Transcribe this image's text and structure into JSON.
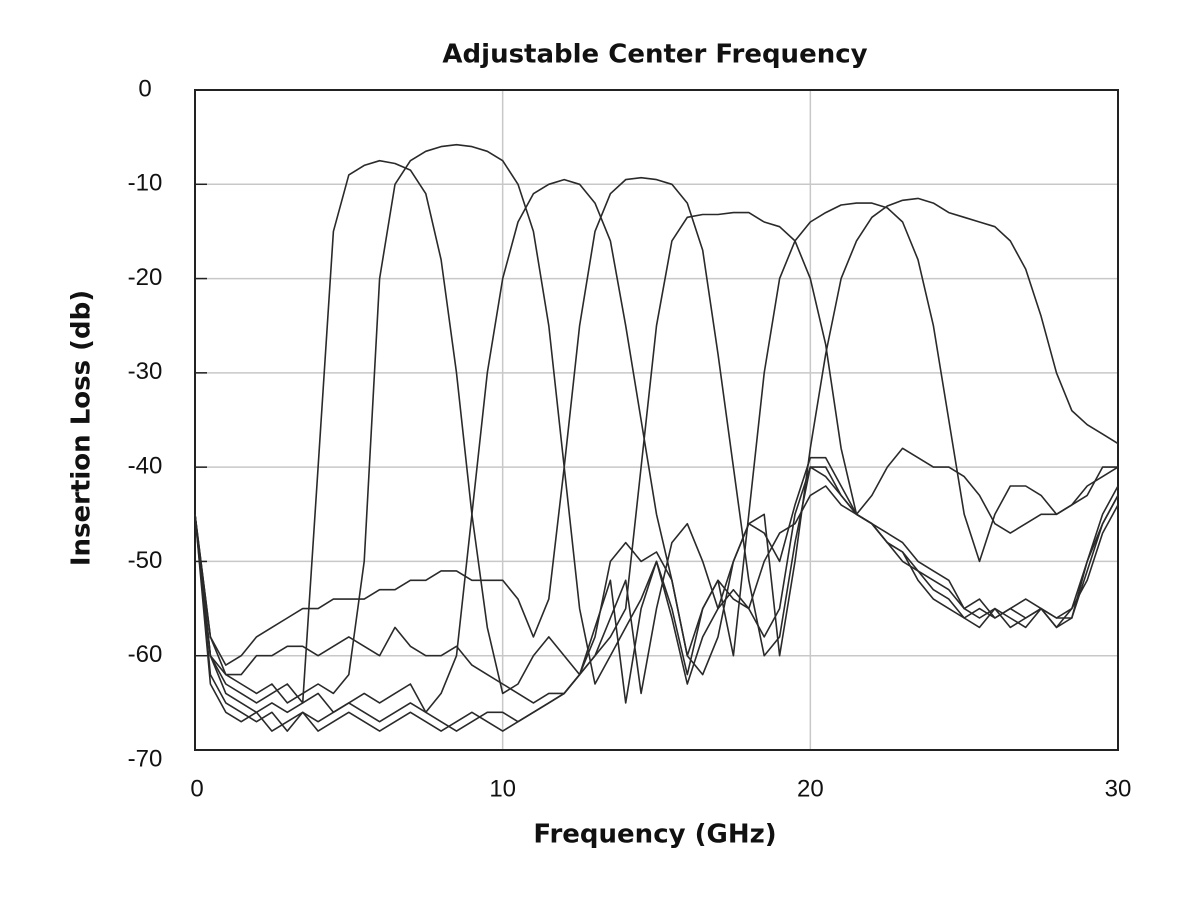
{
  "chart_data": {
    "type": "line",
    "title": "Adjustable Center Frequency",
    "xlabel": "Frequency (GHz)",
    "ylabel": "Insertion Loss (db)",
    "xlim": [
      0,
      30
    ],
    "ylim": [
      -70,
      0
    ],
    "xticks": [
      0,
      10,
      20,
      30
    ],
    "yticks": [
      0,
      -10,
      -20,
      -30,
      -40,
      -50,
      -60,
      -70
    ],
    "grid": true,
    "x": [
      0,
      0.5,
      1,
      1.5,
      2,
      2.5,
      3,
      3.5,
      4,
      4.5,
      5,
      5.5,
      6,
      6.5,
      7,
      7.5,
      8,
      8.5,
      9,
      9.5,
      10,
      10.5,
      11,
      11.5,
      12,
      12.5,
      13,
      13.5,
      14,
      14.5,
      15,
      15.5,
      16,
      16.5,
      17,
      17.5,
      18,
      18.5,
      19,
      19.5,
      20,
      20.5,
      21,
      21.5,
      22,
      22.5,
      23,
      23.5,
      24,
      24.5,
      25,
      25.5,
      26,
      26.5,
      27,
      27.5,
      28,
      28.5,
      29,
      29.5,
      30
    ],
    "series": [
      {
        "color": "#2a2a2a",
        "values": [
          -45,
          -60,
          -64,
          -65,
          -66,
          -65,
          -66,
          -65,
          -40,
          -15,
          -9,
          -8,
          -7.5,
          -7.8,
          -8.5,
          -11,
          -18,
          -30,
          -45,
          -57,
          -64,
          -63,
          -60,
          -58,
          -60,
          -62,
          -57,
          -52,
          -65,
          -55,
          -50,
          -55,
          -62,
          -55,
          -52,
          -54,
          -55,
          -50,
          -47,
          -46,
          -43,
          -42,
          -44,
          -45,
          -46,
          -48,
          -50,
          -51,
          -53,
          -54,
          -56,
          -55,
          -56,
          -55,
          -56,
          -55,
          -57,
          -55,
          -50,
          -46,
          -43
        ]
      },
      {
        "color": "#2a2a2a",
        "values": [
          -45,
          -58,
          -62,
          -63,
          -64,
          -63,
          -65,
          -64,
          -63,
          -64,
          -62,
          -50,
          -20,
          -10,
          -7.5,
          -6.5,
          -6,
          -5.8,
          -6,
          -6.5,
          -7.5,
          -10,
          -15,
          -25,
          -40,
          -55,
          -63,
          -60,
          -57,
          -54,
          -50,
          -56,
          -63,
          -58,
          -55,
          -53,
          -55,
          -58,
          -55,
          -45,
          -40,
          -41,
          -43,
          -45,
          -46,
          -48,
          -49,
          -52,
          -54,
          -55,
          -56,
          -57,
          -55,
          -56,
          -57,
          -55,
          -56,
          -55,
          -52,
          -47,
          -44
        ]
      },
      {
        "color": "#2a2a2a",
        "values": [
          -45,
          -60,
          -63,
          -64,
          -65,
          -64,
          -63,
          -65,
          -64,
          -66,
          -65,
          -64,
          -65,
          -64,
          -63,
          -66,
          -64,
          -60,
          -45,
          -30,
          -20,
          -14,
          -11,
          -10,
          -9.5,
          -10,
          -12,
          -16,
          -25,
          -35,
          -45,
          -52,
          -60,
          -62,
          -58,
          -50,
          -46,
          -47,
          -50,
          -44,
          -39,
          -39,
          -42,
          -45,
          -46,
          -47,
          -48,
          -50,
          -51,
          -52,
          -55,
          -54,
          -56,
          -55,
          -54,
          -55,
          -56,
          -56,
          -50,
          -45,
          -42
        ]
      },
      {
        "color": "#2a2a2a",
        "values": [
          -45,
          -58,
          -61,
          -60,
          -58,
          -57,
          -56,
          -55,
          -55,
          -54,
          -54,
          -54,
          -53,
          -53,
          -52,
          -52,
          -51,
          -51,
          -52,
          -52,
          -52,
          -54,
          -58,
          -54,
          -40,
          -25,
          -15,
          -11,
          -9.5,
          -9.3,
          -9.5,
          -10,
          -12,
          -17,
          -28,
          -40,
          -52,
          -60,
          -58,
          -48,
          -40,
          -40,
          -43,
          -45,
          -46,
          -48,
          -49,
          -51,
          -52,
          -53,
          -55,
          -56,
          -55,
          -57,
          -56,
          -55,
          -57,
          -56,
          -51,
          -46,
          -43
        ]
      },
      {
        "color": "#2a2a2a",
        "values": [
          -45,
          -60,
          -62,
          -62,
          -60,
          -60,
          -59,
          -59,
          -60,
          -59,
          -58,
          -59,
          -60,
          -57,
          -59,
          -60,
          -60,
          -59,
          -61,
          -62,
          -63,
          -64,
          -65,
          -64,
          -64,
          -62,
          -60,
          -58,
          -55,
          -40,
          -25,
          -16,
          -13.5,
          -13.2,
          -13.2,
          -13,
          -13,
          -14,
          -14.5,
          -16,
          -20,
          -27,
          -38,
          -45,
          -43,
          -40,
          -38,
          -39,
          -40,
          -40,
          -41,
          -43,
          -46,
          -47,
          -46,
          -45,
          -45,
          -44,
          -43,
          -40,
          -40
        ]
      },
      {
        "color": "#2a2a2a",
        "values": [
          -45,
          -62,
          -65,
          -66,
          -67,
          -66,
          -68,
          -66,
          -67,
          -66,
          -65,
          -66,
          -67,
          -66,
          -65,
          -66,
          -67,
          -68,
          -67,
          -66,
          -66,
          -67,
          -66,
          -65,
          -64,
          -62,
          -58,
          -50,
          -48,
          -50,
          -49,
          -52,
          -60,
          -55,
          -52,
          -60,
          -45,
          -30,
          -20,
          -16,
          -14,
          -13,
          -12.2,
          -12,
          -12,
          -12.5,
          -14,
          -18,
          -25,
          -35,
          -45,
          -50,
          -45,
          -42,
          -42,
          -43,
          -45,
          -44,
          -42,
          -41,
          -40
        ]
      },
      {
        "color": "#2a2a2a",
        "values": [
          -45,
          -63,
          -66,
          -67,
          -66,
          -68,
          -67,
          -66,
          -68,
          -67,
          -66,
          -67,
          -68,
          -67,
          -66,
          -67,
          -68,
          -67,
          -66,
          -67,
          -68,
          -67,
          -66,
          -65,
          -64,
          -62,
          -60,
          -56,
          -52,
          -64,
          -55,
          -48,
          -46,
          -50,
          -55,
          -50,
          -46,
          -45,
          -60,
          -50,
          -38,
          -28,
          -20,
          -16,
          -13.5,
          -12.3,
          -11.7,
          -11.5,
          -12,
          -13,
          -13.5,
          -14,
          -14.5,
          -16,
          -19,
          -24,
          -30,
          -34,
          -35.5,
          -36.5,
          -37.5
        ]
      }
    ]
  }
}
